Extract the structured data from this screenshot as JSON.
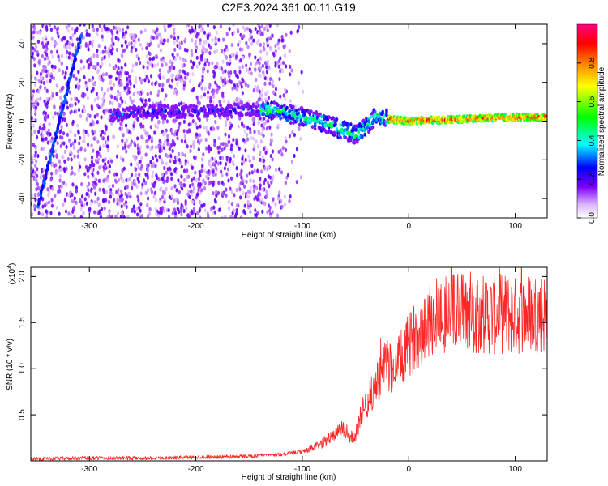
{
  "title": "C2E3.2024.361.00.11.G19",
  "chart_data": [
    {
      "type": "heatmap",
      "xlabel": "Height of straight line (km)",
      "ylabel": "Frequency (Hz)",
      "xlim": [
        -355,
        130
      ],
      "ylim": [
        -50,
        50
      ],
      "xticks": [
        -300,
        -200,
        -100,
        0,
        100
      ],
      "xtick_labels": [
        "-300",
        "-200",
        "-100",
        "0",
        "100"
      ],
      "yticks": [
        -40,
        -20,
        0,
        20,
        40
      ],
      "ytick_labels": [
        "-40",
        "-20",
        "0",
        "20",
        "40"
      ],
      "colorbar": {
        "label": "Normalized spectral amplitude",
        "range": [
          0,
          1
        ],
        "ticks": [
          0.0,
          0.2,
          0.4,
          0.6,
          0.8
        ],
        "tick_labels": [
          "0.0",
          "0.2",
          "0.4",
          "0.6",
          "0.8"
        ],
        "colors": [
          "#ffffff",
          "#dcb4ff",
          "#7a00ff",
          "#0000ff",
          "#00ffff",
          "#00ff00",
          "#ffff00",
          "#ff8000",
          "#ff0000",
          "#ff0080"
        ]
      },
      "ridge": [
        {
          "x": -275,
          "y": 3
        },
        {
          "x": -250,
          "y": 5
        },
        {
          "x": -200,
          "y": 5
        },
        {
          "x": -150,
          "y": 6
        },
        {
          "x": -120,
          "y": 5
        },
        {
          "x": -100,
          "y": 2
        },
        {
          "x": -85,
          "y": 0
        },
        {
          "x": -70,
          "y": -3
        },
        {
          "x": -60,
          "y": -5
        },
        {
          "x": -50,
          "y": -7
        },
        {
          "x": -40,
          "y": -3
        },
        {
          "x": -30,
          "y": 3
        },
        {
          "x": -20,
          "y": 1
        },
        {
          "x": 0,
          "y": 0
        },
        {
          "x": 50,
          "y": 1
        },
        {
          "x": 100,
          "y": 2
        },
        {
          "x": 130,
          "y": 2
        }
      ]
    },
    {
      "type": "line",
      "xlabel": "Height of straight line (km)",
      "ylabel": "SNR (10 * v/v)",
      "y_multiplier_label": "(x10",
      "y_multiplier_exp": "4",
      "y_multiplier_close": ")",
      "xlim": [
        -355,
        130
      ],
      "ylim": [
        0,
        2.1
      ],
      "xticks": [
        -300,
        -200,
        -100,
        0,
        100
      ],
      "xtick_labels": [
        "-300",
        "-200",
        "-100",
        "0",
        "100"
      ],
      "yticks": [
        0.5,
        1.0,
        1.5,
        2.0
      ],
      "ytick_labels": [
        "0.5",
        "1.0",
        "1.5",
        "2.0"
      ],
      "color": "#ff0000",
      "series": [
        {
          "x": [
            -355,
            -300,
            -250,
            -200,
            -150,
            -120,
            -100,
            -90,
            -80,
            -70,
            -60,
            -55,
            -50,
            -45,
            -40,
            -35,
            -30,
            -25,
            -20,
            -15,
            -10,
            -5,
            0,
            10,
            20,
            30,
            40,
            50,
            60,
            70,
            80,
            90,
            100,
            110,
            120,
            130
          ],
          "values": [
            0.02,
            0.03,
            0.03,
            0.04,
            0.05,
            0.07,
            0.1,
            0.14,
            0.2,
            0.3,
            0.35,
            0.25,
            0.28,
            0.5,
            0.62,
            0.72,
            0.85,
            0.95,
            1.05,
            1.0,
            1.05,
            1.15,
            1.25,
            1.42,
            1.55,
            1.6,
            1.62,
            1.63,
            1.62,
            1.6,
            1.58,
            1.6,
            1.57,
            1.6,
            1.62,
            1.6
          ]
        }
      ]
    }
  ]
}
